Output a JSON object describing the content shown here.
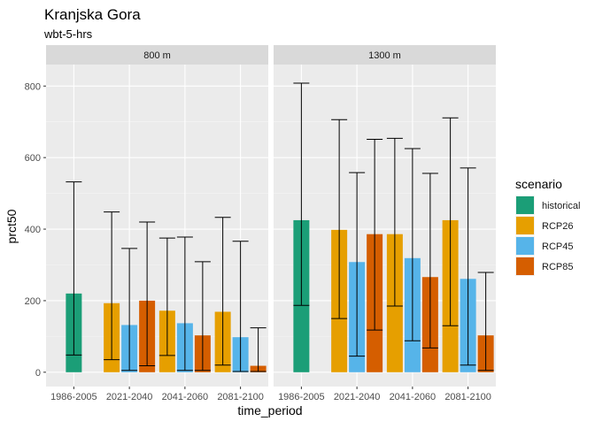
{
  "chart_data": {
    "type": "bar",
    "title": "Kranjska Gora",
    "subtitle": "wbt-5-hrs",
    "xlabel": "time_period",
    "ylabel": "prct50",
    "ylim": [
      -40,
      860
    ],
    "yticks": [
      0,
      200,
      400,
      600,
      800
    ],
    "grid": true,
    "legend": {
      "title": "scenario",
      "position": "right",
      "entries": [
        "historical",
        "RCP26",
        "RCP45",
        "RCP85"
      ]
    },
    "colors": {
      "historical": "#1b9e77",
      "RCP26": "#e69f00",
      "RCP45": "#56b4e9",
      "RCP85": "#d55e00"
    },
    "categories": [
      "1986-2005",
      "2021-2040",
      "2041-2060",
      "2081-2100"
    ],
    "panels": [
      {
        "label": "800 m",
        "groups": [
          {
            "period": "1986-2005",
            "bars": [
              {
                "scenario": "historical",
                "value": 220,
                "err_low": 48,
                "err_high": 532
              }
            ]
          },
          {
            "period": "2021-2040",
            "bars": [
              {
                "scenario": "RCP26",
                "value": 193,
                "err_low": 35,
                "err_high": 448
              },
              {
                "scenario": "RCP45",
                "value": 132,
                "err_low": 5,
                "err_high": 346
              },
              {
                "scenario": "RCP85",
                "value": 200,
                "err_low": 18,
                "err_high": 420
              }
            ]
          },
          {
            "period": "2041-2060",
            "bars": [
              {
                "scenario": "RCP26",
                "value": 172,
                "err_low": 47,
                "err_high": 375
              },
              {
                "scenario": "RCP45",
                "value": 137,
                "err_low": 5,
                "err_high": 378
              },
              {
                "scenario": "RCP85",
                "value": 103,
                "err_low": 5,
                "err_high": 309
              }
            ]
          },
          {
            "period": "2081-2100",
            "bars": [
              {
                "scenario": "RCP26",
                "value": 169,
                "err_low": 20,
                "err_high": 433
              },
              {
                "scenario": "RCP45",
                "value": 98,
                "err_low": 2,
                "err_high": 366
              },
              {
                "scenario": "RCP85",
                "value": 18,
                "err_low": 2,
                "err_high": 124
              }
            ]
          }
        ]
      },
      {
        "label": "1300 m",
        "groups": [
          {
            "period": "1986-2005",
            "bars": [
              {
                "scenario": "historical",
                "value": 425,
                "err_low": 187,
                "err_high": 808
              }
            ]
          },
          {
            "period": "2021-2040",
            "bars": [
              {
                "scenario": "RCP26",
                "value": 398,
                "err_low": 150,
                "err_high": 706
              },
              {
                "scenario": "RCP45",
                "value": 308,
                "err_low": 45,
                "err_high": 558
              },
              {
                "scenario": "RCP85",
                "value": 386,
                "err_low": 118,
                "err_high": 651
              }
            ]
          },
          {
            "period": "2041-2060",
            "bars": [
              {
                "scenario": "RCP26",
                "value": 386,
                "err_low": 185,
                "err_high": 654
              },
              {
                "scenario": "RCP45",
                "value": 319,
                "err_low": 88,
                "err_high": 625
              },
              {
                "scenario": "RCP85",
                "value": 266,
                "err_low": 68,
                "err_high": 556
              }
            ]
          },
          {
            "period": "2081-2100",
            "bars": [
              {
                "scenario": "RCP26",
                "value": 425,
                "err_low": 130,
                "err_high": 711
              },
              {
                "scenario": "RCP45",
                "value": 261,
                "err_low": 20,
                "err_high": 571
              },
              {
                "scenario": "RCP85",
                "value": 103,
                "err_low": 5,
                "err_high": 279
              }
            ]
          }
        ]
      }
    ]
  }
}
